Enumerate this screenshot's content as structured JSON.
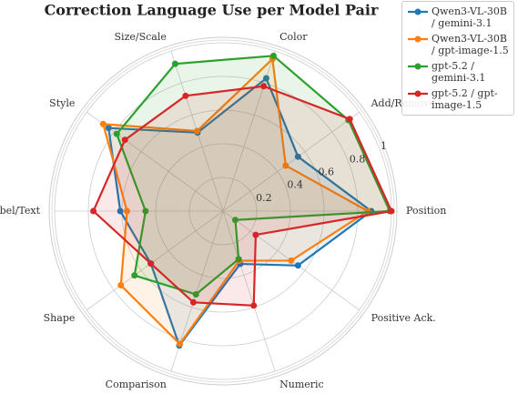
{
  "chart_data": {
    "type": "radar",
    "title": "Correction Language Use per Model Pair",
    "categories": [
      "Position",
      "Add/Remove",
      "Color",
      "Size/Scale",
      "Style",
      "Label/Text",
      "Shape",
      "Comparison",
      "Numeric",
      "Positive Ack."
    ],
    "ylim": [
      0,
      1.0
    ],
    "yticks": [
      0.2,
      0.4,
      0.6,
      0.8,
      1.0
    ],
    "grid": true,
    "legend": "upper right",
    "series": [
      {
        "name": "Qwen3-VL-30B / gemini-3.1",
        "color": "#1f77b4",
        "values": [
          0.88,
          0.55,
          0.83,
          0.49,
          0.84,
          0.61,
          0.53,
          0.84,
          0.33,
          0.55
        ]
      },
      {
        "name": "Qwen3-VL-30B / gpt-image-1.5",
        "color": "#ff7f0e",
        "values": [
          0.86,
          0.46,
          0.95,
          0.5,
          0.88,
          0.57,
          0.75,
          0.83,
          0.31,
          0.5
        ]
      },
      {
        "name": "gpt-5.2 / gemini-3.1",
        "color": "#2ca02c",
        "values": [
          0.99,
          0.92,
          0.97,
          0.92,
          0.78,
          0.46,
          0.65,
          0.52,
          0.3,
          0.09
        ]
      },
      {
        "name": "gpt-5.2 / gpt-image-1.5",
        "color": "#d62728",
        "values": [
          1.0,
          0.93,
          0.78,
          0.72,
          0.72,
          0.77,
          0.53,
          0.57,
          0.59,
          0.24
        ]
      }
    ]
  }
}
